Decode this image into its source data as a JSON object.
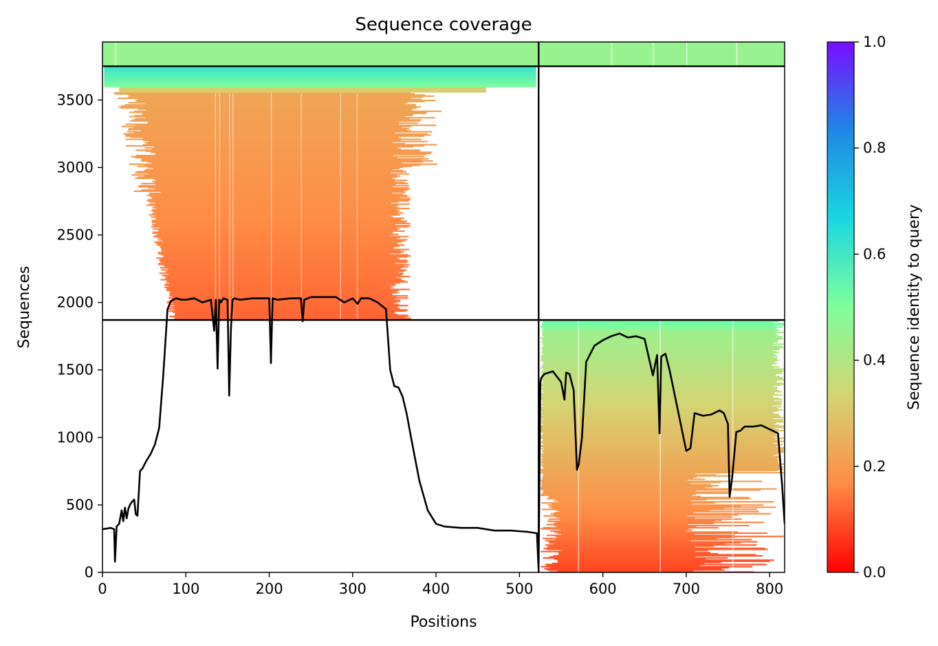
{
  "chart_data": {
    "type": "heatmap",
    "title": "Sequence coverage",
    "xlabel": "Positions",
    "ylabel": "Sequences",
    "xlim": [
      0,
      818
    ],
    "ylim": [
      0,
      3930
    ],
    "xticks": [
      0,
      100,
      200,
      300,
      400,
      500,
      600,
      700,
      800
    ],
    "yticks": [
      0,
      500,
      1000,
      1500,
      2000,
      2500,
      3000,
      3500
    ],
    "grid": false,
    "colorbar": {
      "label": "Sequence identity to query",
      "range": [
        0,
        1
      ],
      "ticks": [
        "0.0",
        "0.2",
        "0.4",
        "0.6",
        "0.8",
        "1.0"
      ],
      "colormap": "rainbow_r",
      "colors": [
        "#ff0000",
        "#ff8c46",
        "#d4d473",
        "#80ff9c",
        "#1ad7e0",
        "#1e88e5",
        "#7a0dff"
      ]
    },
    "chain_boundary_x": 523,
    "block_boundaries_y": [
      1870,
      3750
    ],
    "blocks": [
      {
        "x_range": [
          0,
          523
        ],
        "y_range": [
          1870,
          3750
        ],
        "identity_range": [
          0.1,
          0.6
        ]
      },
      {
        "x_range": [
          523,
          818
        ],
        "y_range": [
          0,
          1870
        ],
        "identity_range": [
          0.05,
          0.5
        ]
      },
      {
        "x_range": [
          0,
          818
        ],
        "y_range": [
          3750,
          3930
        ],
        "identity_range": [
          0.45,
          0.45
        ]
      }
    ],
    "coverage_series": {
      "name": "",
      "color": "#000000",
      "x": [
        0,
        10,
        14,
        15,
        17,
        20,
        23,
        25,
        27,
        29,
        31,
        33,
        35,
        38,
        40,
        42,
        45,
        48,
        52,
        58,
        63,
        68,
        73,
        78,
        82,
        85,
        88,
        95,
        100,
        110,
        120,
        130,
        134,
        136,
        138,
        140,
        142,
        145,
        150,
        152,
        154,
        156,
        158,
        165,
        180,
        200,
        202,
        204,
        210,
        225,
        238,
        240,
        242,
        250,
        280,
        290,
        300,
        306,
        310,
        320,
        330,
        340,
        345,
        350,
        355,
        360,
        365,
        370,
        380,
        390,
        400,
        410,
        430,
        450,
        470,
        490,
        510,
        521,
        523,
        525,
        526,
        530,
        540,
        550,
        554,
        556,
        560,
        565,
        569,
        571,
        575,
        580,
        590,
        600,
        610,
        620,
        630,
        640,
        650,
        660,
        665,
        668,
        670,
        675,
        680,
        690,
        700,
        705,
        710,
        720,
        730,
        740,
        745,
        750,
        752,
        755,
        760,
        765,
        770,
        780,
        790,
        800,
        810,
        815,
        818
      ],
      "y": [
        320,
        330,
        320,
        80,
        340,
        360,
        460,
        380,
        480,
        400,
        470,
        500,
        520,
        540,
        430,
        420,
        750,
        770,
        820,
        880,
        950,
        1070,
        1470,
        1950,
        2010,
        2020,
        2030,
        2020,
        2020,
        2030,
        2000,
        2020,
        1790,
        2020,
        1510,
        2020,
        2000,
        2030,
        2020,
        1310,
        1800,
        2020,
        2030,
        2020,
        2030,
        2030,
        1550,
        2030,
        2020,
        2030,
        2030,
        1860,
        2020,
        2040,
        2040,
        2000,
        2030,
        1990,
        2030,
        2030,
        2000,
        1950,
        1500,
        1380,
        1370,
        1300,
        1170,
        1000,
        680,
        460,
        360,
        340,
        330,
        330,
        310,
        310,
        300,
        290,
        20,
        1400,
        1440,
        1470,
        1490,
        1410,
        1280,
        1480,
        1470,
        1350,
        760,
        800,
        1000,
        1560,
        1680,
        1720,
        1750,
        1770,
        1740,
        1750,
        1730,
        1460,
        1610,
        1030,
        1600,
        1620,
        1500,
        1200,
        900,
        920,
        1180,
        1160,
        1170,
        1200,
        1180,
        1100,
        560,
        700,
        1040,
        1050,
        1080,
        1080,
        1090,
        1060,
        1030,
        640,
        360
      ]
    }
  }
}
